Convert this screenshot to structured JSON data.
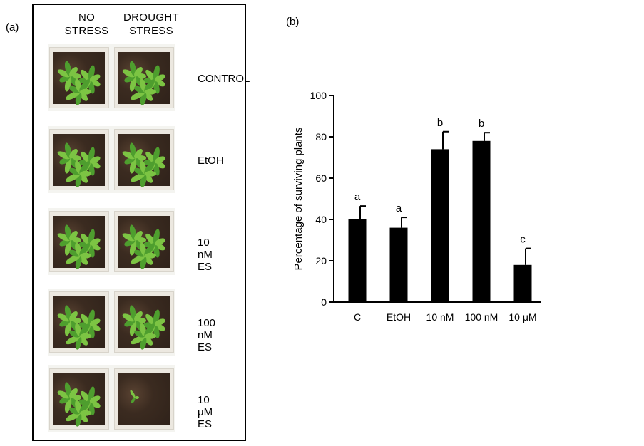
{
  "panel_a": {
    "label": "(a)",
    "col_no_stress": "NO\nSTRESS",
    "col_no_line1": "NO",
    "col_no_line2": "STRESS",
    "col_drought_line1": "DROUGHT",
    "col_drought_line2": "STRESS",
    "rows": [
      {
        "label": "CONTROL"
      },
      {
        "label": "EtOH"
      },
      {
        "label": "10 nM ES"
      },
      {
        "label": "100 nM ES"
      },
      {
        "label": "10 μM ES"
      }
    ],
    "colors": {
      "leaf": "#4e9e2e",
      "leaf_light": "#7cc443",
      "soil": "#3b2b20",
      "pot": "#ece8e0"
    }
  },
  "panel_b": {
    "label": "(b)"
  },
  "chart_data": {
    "type": "bar",
    "categories": [
      "C",
      "EtOH",
      "10 nM",
      "100 nM",
      "10 μM"
    ],
    "values": [
      40,
      36,
      74,
      78,
      18
    ],
    "error_bars": [
      6.5,
      5,
      8.5,
      4,
      8
    ],
    "significance_letters": [
      "a",
      "a",
      "b",
      "b",
      "c"
    ],
    "ylabel": "Percentage of surviving plants",
    "xlabel": "",
    "ylim": [
      0,
      100
    ],
    "yticks": [
      0,
      20,
      40,
      60,
      80,
      100
    ],
    "bar_color": "#000000",
    "grid": false
  }
}
